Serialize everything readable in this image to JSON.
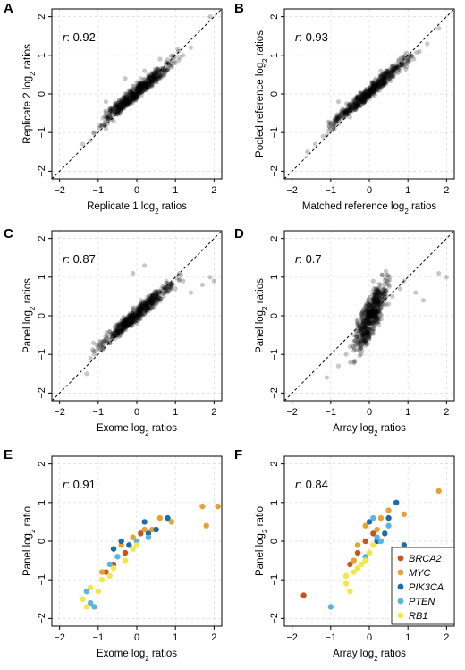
{
  "chart_data": [
    {
      "panel": "A",
      "type": "scatter",
      "r_prefix": "r",
      "r_value": ": 0.92",
      "xlabel": "Replicate 1 log",
      "xlabel_sub": "2",
      "xlabel_suffix": " ratios",
      "ylabel": "Replicate 2 log",
      "ylabel_sub": "2",
      "ylabel_suffix": " ratios",
      "xlim": [
        -2.2,
        2.2
      ],
      "ylim": [
        -2.2,
        2.2
      ],
      "ticks": [
        -2,
        -1,
        0,
        1,
        2
      ],
      "tick_labels": [
        "−2",
        "−1",
        "0",
        "1",
        "2"
      ],
      "reference_line": "y = x",
      "point_color": "#000000",
      "point_alpha": 0.22,
      "points_are_summarized": true,
      "x": [
        -1.4,
        -1.2,
        -1.1,
        -0.9,
        -0.8,
        -0.7,
        -0.6,
        -0.6,
        -0.5,
        -0.5,
        -0.4,
        -0.4,
        -0.3,
        -0.3,
        -0.2,
        -0.2,
        -0.1,
        -0.1,
        0.0,
        0.0,
        0.0,
        0.1,
        0.1,
        0.2,
        0.2,
        0.3,
        0.3,
        0.4,
        0.4,
        0.5,
        0.6,
        0.7,
        0.8,
        0.9,
        1.0,
        1.2,
        -0.8,
        -0.3,
        0.2,
        0.6,
        1.4,
        1.9
      ],
      "y": [
        -1.3,
        -1.2,
        -1.0,
        -0.8,
        -0.9,
        -0.6,
        -0.7,
        -0.4,
        -0.5,
        -0.3,
        -0.4,
        -0.2,
        -0.2,
        0.0,
        -0.1,
        0.1,
        0.0,
        0.2,
        0.1,
        0.3,
        -0.1,
        0.2,
        0.4,
        0.3,
        0.1,
        0.4,
        0.2,
        0.5,
        0.3,
        0.4,
        0.6,
        0.5,
        0.8,
        0.7,
        0.8,
        1.0,
        -0.2,
        0.4,
        0.6,
        0.9,
        1.2,
        2.0
      ]
    },
    {
      "panel": "B",
      "type": "scatter",
      "r_prefix": "r",
      "r_value": ": 0.93",
      "xlabel": "Matched reference log",
      "xlabel_sub": "2",
      "xlabel_suffix": " ratios",
      "ylabel": "Pooled reference log",
      "ylabel_sub": "2",
      "ylabel_suffix": " ratios",
      "xlim": [
        -2.2,
        2.2
      ],
      "ylim": [
        -2.2,
        2.2
      ],
      "ticks": [
        -2,
        -1,
        0,
        1,
        2
      ],
      "tick_labels": [
        "−2",
        "−1",
        "0",
        "1",
        "2"
      ],
      "reference_line": "y = x",
      "point_color": "#000000",
      "point_alpha": 0.22,
      "points_are_summarized": true,
      "x": [
        -1.6,
        -1.4,
        -1.2,
        -1.0,
        -0.9,
        -0.8,
        -0.7,
        -0.6,
        -0.5,
        -0.5,
        -0.4,
        -0.3,
        -0.3,
        -0.2,
        -0.1,
        -0.1,
        0.0,
        0.0,
        0.1,
        0.1,
        0.2,
        0.2,
        0.3,
        0.4,
        0.4,
        0.5,
        0.6,
        0.7,
        0.8,
        0.9,
        1.0,
        1.1,
        1.3,
        -0.8,
        0.3,
        1.5,
        1.8
      ],
      "y": [
        -1.5,
        -1.3,
        -1.1,
        -0.9,
        -0.9,
        -0.7,
        -0.6,
        -0.5,
        -0.6,
        -0.3,
        -0.4,
        -0.3,
        -0.1,
        -0.2,
        0.0,
        -0.1,
        0.0,
        0.1,
        0.0,
        0.2,
        0.1,
        0.3,
        0.2,
        0.4,
        0.3,
        0.5,
        0.5,
        0.7,
        0.6,
        0.8,
        0.9,
        1.0,
        1.1,
        -0.2,
        0.6,
        1.3,
        1.7
      ]
    },
    {
      "panel": "C",
      "type": "scatter",
      "r_prefix": "r",
      "r_value": ": 0.87",
      "xlabel": "Exome log",
      "xlabel_sub": "2",
      "xlabel_suffix": " ratios",
      "ylabel": "Panel log",
      "ylabel_sub": "2",
      "ylabel_suffix": " ratios",
      "xlim": [
        -2.2,
        2.2
      ],
      "ylim": [
        -2.2,
        2.2
      ],
      "ticks": [
        -2,
        -1,
        0,
        1,
        2
      ],
      "tick_labels": [
        "−2",
        "−1",
        "0",
        "1",
        "2"
      ],
      "reference_line": "y = x",
      "point_color": "#000000",
      "point_alpha": 0.22,
      "points_are_summarized": true,
      "x": [
        -1.3,
        -1.2,
        -1.1,
        -1.0,
        -0.9,
        -0.8,
        -0.7,
        -0.7,
        -0.6,
        -0.5,
        -0.5,
        -0.4,
        -0.3,
        -0.3,
        -0.2,
        -0.1,
        -0.1,
        0.0,
        0.0,
        0.1,
        0.1,
        0.2,
        0.3,
        0.3,
        0.4,
        0.5,
        0.5,
        0.6,
        0.7,
        0.8,
        0.9,
        1.0,
        1.2,
        1.4,
        1.7,
        1.9,
        2.0,
        0.2,
        -0.1
      ],
      "y": [
        -1.5,
        -1.1,
        -1.0,
        -0.8,
        -0.9,
        -0.6,
        -0.7,
        -0.4,
        -0.5,
        -0.3,
        -0.5,
        -0.2,
        -0.1,
        -0.3,
        0.0,
        -0.1,
        0.2,
        0.1,
        -0.2,
        0.2,
        0.4,
        0.3,
        0.2,
        0.5,
        0.4,
        0.5,
        0.3,
        0.6,
        0.5,
        0.6,
        0.8,
        0.7,
        0.9,
        0.6,
        0.8,
        1.0,
        0.9,
        1.3,
        1.1
      ]
    },
    {
      "panel": "D",
      "type": "scatter",
      "r_prefix": "r",
      "r_value": ": 0.7",
      "xlabel": "Array log",
      "xlabel_sub": "2",
      "xlabel_suffix": " ratios",
      "ylabel": "Panel log",
      "ylabel_sub": "2",
      "ylabel_suffix": " ratios",
      "xlim": [
        -2.2,
        2.2
      ],
      "ylim": [
        -2.2,
        2.2
      ],
      "ticks": [
        -2,
        -1,
        0,
        1,
        2
      ],
      "tick_labels": [
        "−2",
        "−1",
        "0",
        "1",
        "2"
      ],
      "reference_line": "y = x",
      "point_color": "#000000",
      "point_alpha": 0.22,
      "points_are_summarized": true,
      "x": [
        -1.1,
        -0.8,
        -0.6,
        -0.5,
        -0.4,
        -0.4,
        -0.3,
        -0.3,
        -0.2,
        -0.2,
        -0.1,
        -0.1,
        0.0,
        0.0,
        0.0,
        0.1,
        0.1,
        0.2,
        0.2,
        0.3,
        0.3,
        0.4,
        0.5,
        0.6,
        0.8,
        0.9,
        1.2,
        1.4,
        1.8,
        2.0,
        -0.4,
        0.1,
        0.3
      ],
      "y": [
        -1.6,
        -1.3,
        -1.0,
        -0.8,
        -0.9,
        -0.5,
        -0.6,
        -0.2,
        -0.4,
        0.0,
        -0.3,
        0.2,
        -0.1,
        0.1,
        0.3,
        0.0,
        0.4,
        0.1,
        0.5,
        0.2,
        0.6,
        0.4,
        0.3,
        0.5,
        0.7,
        0.9,
        0.6,
        0.4,
        1.1,
        1.0,
        -1.2,
        0.9,
        0.8
      ]
    },
    {
      "panel": "E",
      "type": "scatter",
      "r_prefix": "r",
      "r_value": ": 0.91",
      "xlabel": "Exome log",
      "xlabel_sub": "2",
      "xlabel_suffix": " ratios",
      "ylabel": "Panel log",
      "ylabel_sub": "2",
      "ylabel_suffix": " ratio",
      "xlim": [
        -2.2,
        2.2
      ],
      "ylim": [
        -2.2,
        2.2
      ],
      "ticks": [
        -2,
        -1,
        0,
        1,
        2
      ],
      "tick_labels": [
        "−2",
        "−1",
        "0",
        "1",
        "2"
      ],
      "series": [
        {
          "name": "BRCA2",
          "color": "#c8551f",
          "x": [
            -0.6,
            -0.3,
            0.1,
            0.5,
            -0.8
          ],
          "y": [
            -0.6,
            -0.3,
            0.2,
            0.3,
            -0.8
          ]
        },
        {
          "name": "MYC",
          "color": "#e8a233",
          "x": [
            1.7,
            1.8,
            2.1,
            0.4,
            0.6,
            0.2,
            -0.1,
            -0.4,
            -0.9,
            0.9
          ],
          "y": [
            0.9,
            0.4,
            0.9,
            0.3,
            0.6,
            0.3,
            0.1,
            -0.1,
            -0.8,
            0.5
          ]
        },
        {
          "name": "PIK3CA",
          "color": "#1c6bab",
          "x": [
            0.8,
            0.5,
            0.2,
            -0.2,
            -0.4,
            0.3,
            -0.6
          ],
          "y": [
            0.6,
            0.3,
            0.5,
            -0.1,
            0.0,
            0.2,
            -0.2
          ]
        },
        {
          "name": "PTEN",
          "color": "#5ab4e3",
          "x": [
            -1.3,
            -1.2,
            -1.1,
            -0.7,
            -0.5,
            0.0,
            0.3,
            -1.4
          ],
          "y": [
            -1.3,
            -1.6,
            -1.7,
            -0.6,
            -0.4,
            0.0,
            0.1,
            -1.5
          ]
        },
        {
          "name": "RB1",
          "color": "#f5e648",
          "x": [
            -1.4,
            -1.3,
            -1.2,
            -1.0,
            -0.9,
            -0.7,
            -0.6,
            -0.3,
            -0.1,
            0.0
          ],
          "y": [
            -1.5,
            -1.7,
            -1.2,
            -1.3,
            -1.0,
            -0.9,
            -0.7,
            -0.5,
            -0.2,
            -0.1
          ]
        }
      ]
    },
    {
      "panel": "F",
      "type": "scatter",
      "r_prefix": "r",
      "r_value": ": 0.84",
      "xlabel": "Array log",
      "xlabel_sub": "2",
      "xlabel_suffix": " ratios",
      "ylabel": "Panel log",
      "ylabel_sub": "2",
      "ylabel_suffix": " ratio",
      "xlim": [
        -2.2,
        2.2
      ],
      "ylim": [
        -2.2,
        2.2
      ],
      "ticks": [
        -2,
        -1,
        0,
        1,
        2
      ],
      "tick_labels": [
        "−2",
        "−1",
        "0",
        "1",
        "2"
      ],
      "legend_position": "bottom-right",
      "series": [
        {
          "name": "BRCA2",
          "color": "#c8551f",
          "x": [
            -1.7,
            -0.5,
            -0.3,
            -0.1,
            0.1
          ],
          "y": [
            -1.4,
            -0.6,
            -0.3,
            0.0,
            0.2
          ]
        },
        {
          "name": "MYC",
          "color": "#e8a233",
          "x": [
            1.8,
            0.9,
            0.5,
            0.3,
            0.2,
            -0.1,
            -0.3,
            -0.4,
            0.0
          ],
          "y": [
            1.3,
            0.7,
            0.8,
            0.6,
            0.3,
            0.4,
            -0.1,
            -0.5,
            -0.3
          ]
        },
        {
          "name": "PIK3CA",
          "color": "#1c6bab",
          "x": [
            0.7,
            0.9,
            0.4,
            0.2,
            0.0,
            0.5
          ],
          "y": [
            1.0,
            -0.1,
            0.2,
            0.0,
            0.5,
            0.6
          ]
        },
        {
          "name": "PTEN",
          "color": "#5ab4e3",
          "x": [
            -1.0,
            0.1,
            0.3,
            0.2,
            0.5,
            -0.1
          ],
          "y": [
            -1.7,
            0.6,
            0.0,
            0.1,
            0.4,
            -0.4
          ]
        },
        {
          "name": "RB1",
          "color": "#f5e648",
          "x": [
            -0.6,
            -0.5,
            -0.4,
            -0.3,
            -0.2,
            -0.1,
            0.0,
            0.1,
            -0.6
          ],
          "y": [
            -1.1,
            -1.3,
            -0.8,
            -0.7,
            -0.6,
            -0.5,
            -0.3,
            -0.1,
            -0.9
          ]
        }
      ]
    }
  ]
}
